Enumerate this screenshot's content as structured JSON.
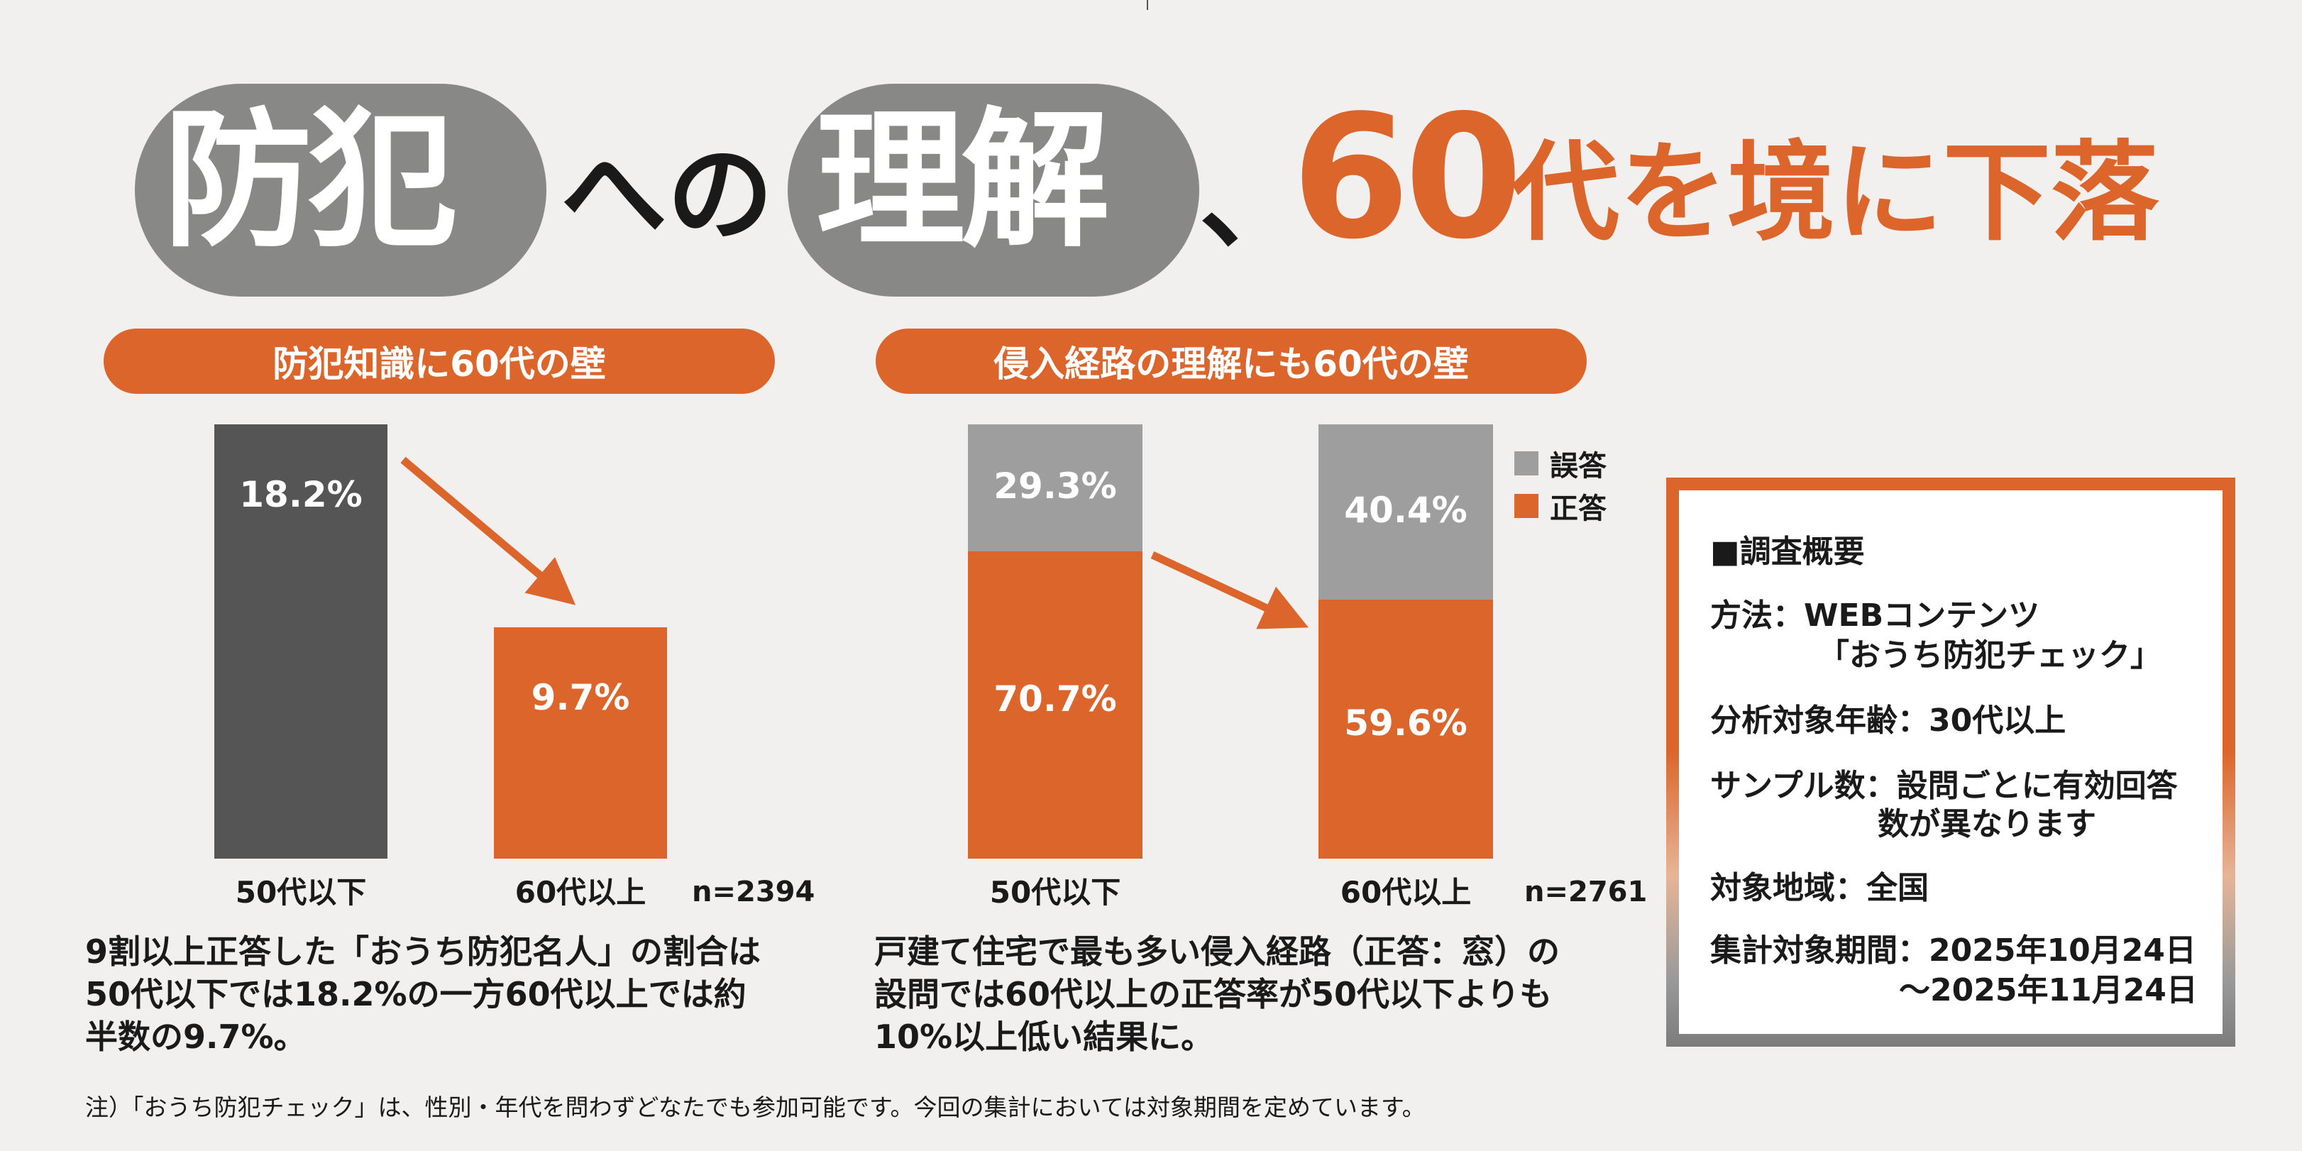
{
  "headline": {
    "w1": "防犯",
    "p1": "への",
    "w2": "理解",
    "p2": "、",
    "num": "60",
    "rest": "代を境に下落"
  },
  "left": {
    "pill": "防犯知識に60代の壁",
    "desc": [
      "9割以上正答した「おうち防犯名人」の割合は",
      "50代以下では18.2%の一方60代以上では約",
      "半数の9.7%。"
    ],
    "n": "n=2394"
  },
  "right": {
    "pill": "侵入経路の理解にも60代の壁",
    "desc": [
      "戸建て住宅で最も多い侵入経路（正答：窓）の",
      "設問では60代以上の正答率が50代以下よりも",
      "10%以上低い結果に。"
    ],
    "n": "n=2761"
  },
  "legend": {
    "wrong": "誤答",
    "correct": "正答"
  },
  "survey": {
    "title": "■調査概要",
    "method": "方法：WEBコンテンツ",
    "method2": "「おうち防犯チェック」",
    "age": "分析対象年齢：30代以上",
    "sample": "サンプル数：設問ごとに有効回答",
    "sample2": "数が異なります",
    "region": "対象地域：全国",
    "period": "集計対象期間：2025年10月24日",
    "period2": "～2025年11月24日"
  },
  "note": "注）「おうち防犯チェック」は、性別・年代を問わずどなたでも参加可能です。今回の集計においては対象期間を定めています。",
  "colors": {
    "orange": "#dc652b",
    "dark": "#565555",
    "gray": "#9d9e9d",
    "circle": "#888887"
  },
  "chart_data": [
    {
      "type": "bar",
      "title": "防犯知識に60代の壁",
      "categories": [
        "50代以下",
        "60代以上"
      ],
      "values": [
        18.2,
        9.7
      ],
      "value_labels": [
        "18.2%",
        "9.7%"
      ],
      "colors": [
        "#565555",
        "#dc652b"
      ],
      "ylim": [
        0,
        18.2
      ],
      "n": "n=2394"
    },
    {
      "type": "bar",
      "stacked": true,
      "title": "侵入経路の理解にも60代の壁",
      "categories": [
        "50代以下",
        "60代以上"
      ],
      "series": [
        {
          "name": "正答",
          "values": [
            70.7,
            59.6
          ],
          "labels": [
            "70.7%",
            "59.6%"
          ],
          "color": "#dc652b"
        },
        {
          "name": "誤答",
          "values": [
            29.3,
            40.4
          ],
          "labels": [
            "29.3%",
            "40.4%"
          ],
          "color": "#9d9e9d"
        }
      ],
      "ylim": [
        0,
        100
      ],
      "n": "n=2761"
    }
  ]
}
